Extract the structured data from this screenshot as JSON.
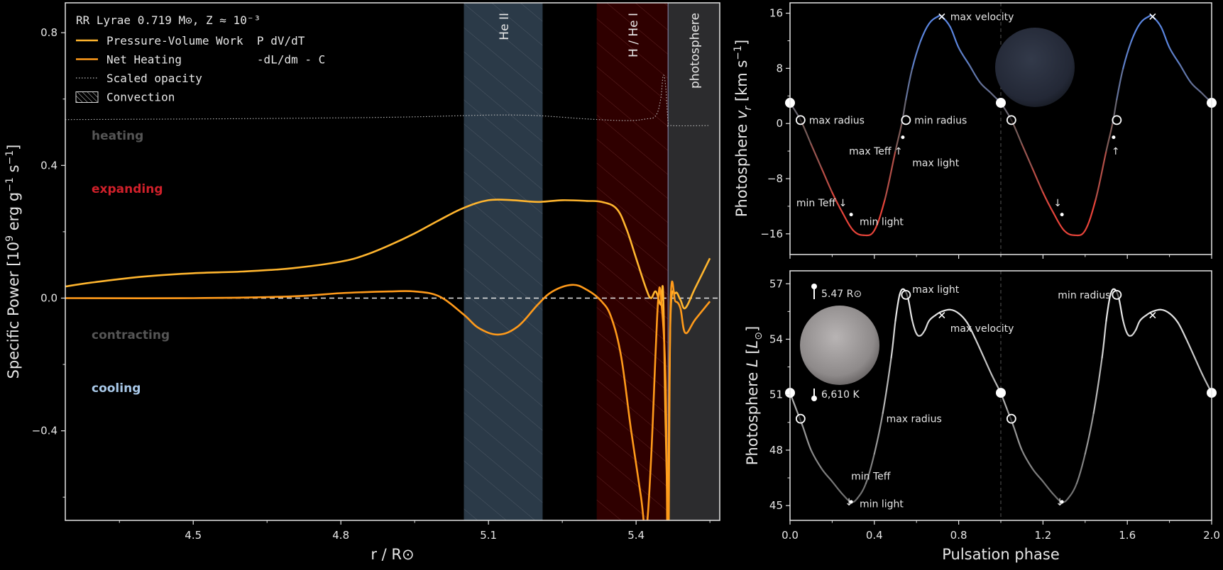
{
  "chart_data": [
    {
      "type": "line",
      "panel": "left",
      "xlabel": "r / R⊙",
      "ylabel": "Specific Power [10⁹ erg g⁻¹ s⁻¹]",
      "xlim": [
        4.24,
        5.57
      ],
      "ylim": [
        -0.67,
        0.89
      ],
      "xticks": [
        4.5,
        4.8,
        5.1,
        5.4
      ],
      "xtick_labels": [
        "4.5",
        "4.8",
        "5.1",
        "5.4"
      ],
      "yticks": [
        0.8,
        0.4,
        0.0,
        -0.4
      ],
      "ytick_labels": [
        "0.8",
        "0.4",
        "0.0",
        "−0.4"
      ],
      "legend": {
        "title": "RR Lyrae  0.719 M⊙, Z ≈ 10⁻³",
        "placement": "top-left",
        "entries": [
          {
            "label": "Pressure-Volume Work  P dV/dT",
            "color": "#ffb52e",
            "style": "solid"
          },
          {
            "label": "Net Heating           -dL/dm - C",
            "color": "#ff9a1a",
            "style": "solid"
          },
          {
            "label": "Scaled opacity",
            "color": "#bbbbbb",
            "style": "dotted"
          },
          {
            "label": "Convection",
            "color": "#cccccc",
            "style": "hatch"
          }
        ]
      },
      "annotations": [
        {
          "text": "heating",
          "color": "#555555",
          "y": 0.49
        },
        {
          "text": "expanding",
          "color": "#d0202a",
          "y": 0.33
        },
        {
          "text": "contracting",
          "color": "#555555",
          "y": -0.11
        },
        {
          "text": "cooling",
          "color": "#a8c8e8",
          "y": -0.27
        }
      ],
      "regions": [
        {
          "label": "He II",
          "x0": 5.05,
          "x1": 5.21,
          "color": "#2b3a48",
          "hatched": true
        },
        {
          "label": "H / He I",
          "x0": 5.32,
          "x1": 5.465,
          "color": "#2f0000",
          "hatched": true
        },
        {
          "label": "photosphere",
          "x0": 5.465,
          "x1": 5.57,
          "color": "#2c2c2e",
          "hatched": false
        }
      ],
      "zero_line": 0.0,
      "series": [
        {
          "name": "Pressure-Volume Work  P dV/dT",
          "color": "#ffb52e",
          "x": [
            4.24,
            4.3,
            4.4,
            4.5,
            4.6,
            4.7,
            4.8,
            4.85,
            4.9,
            4.95,
            5.0,
            5.05,
            5.1,
            5.15,
            5.2,
            5.25,
            5.3,
            5.33,
            5.36,
            5.38,
            5.4,
            5.42,
            5.43,
            5.44,
            5.45,
            5.455,
            5.46,
            5.465,
            5.47,
            5.48,
            5.49,
            5.5,
            5.52,
            5.55
          ],
          "y": [
            0.035,
            0.048,
            0.065,
            0.075,
            0.08,
            0.09,
            0.11,
            0.13,
            0.16,
            0.195,
            0.235,
            0.272,
            0.295,
            0.295,
            0.29,
            0.295,
            0.293,
            0.29,
            0.27,
            0.21,
            0.12,
            0.03,
            0.0,
            0.02,
            -0.02,
            0.015,
            -0.38,
            -0.6,
            -0.05,
            0.015,
            -0.005,
            -0.03,
            0.03,
            0.12
          ]
        },
        {
          "name": "Net Heating           -dL/dm - C",
          "color": "#ff9a1a",
          "x": [
            4.24,
            4.5,
            4.7,
            4.8,
            4.9,
            4.95,
            5.0,
            5.05,
            5.08,
            5.12,
            5.16,
            5.2,
            5.23,
            5.27,
            5.3,
            5.33,
            5.35,
            5.37,
            5.39,
            5.41,
            5.42,
            5.43,
            5.44,
            5.445,
            5.45,
            5.46,
            5.465,
            5.47,
            5.48,
            5.49,
            5.5,
            5.52,
            5.55
          ],
          "y": [
            0.0,
            0.0,
            0.005,
            0.015,
            0.02,
            0.02,
            0.005,
            -0.05,
            -0.09,
            -0.11,
            -0.085,
            -0.02,
            0.02,
            0.04,
            0.025,
            -0.01,
            -0.06,
            -0.18,
            -0.4,
            -0.6,
            -0.7,
            -0.5,
            -0.15,
            -0.005,
            0.01,
            -0.25,
            -0.85,
            -0.02,
            -0.01,
            -0.03,
            -0.105,
            -0.065,
            -0.01
          ]
        },
        {
          "name": "Scaled opacity",
          "color": "#bbbbbb",
          "x": [
            4.24,
            4.5,
            4.7,
            4.9,
            5.05,
            5.12,
            5.2,
            5.3,
            5.38,
            5.42,
            5.44,
            5.45,
            5.455,
            5.46,
            5.465,
            5.47,
            5.55
          ],
          "y": [
            0.538,
            0.54,
            0.542,
            0.545,
            0.55,
            0.552,
            0.55,
            0.54,
            0.535,
            0.54,
            0.55,
            0.6,
            0.67,
            0.64,
            0.53,
            0.52,
            0.52
          ]
        }
      ]
    },
    {
      "type": "line",
      "panel": "top-right",
      "xlabel": "",
      "ylabel": "Photosphere vᵣ [km s⁻¹]",
      "ylabel_parts": {
        "pre": "Photosphere ",
        "sym": "v",
        "sub": "r",
        "unit_pre": " [km s",
        "sup": "−1",
        "unit_post": "]"
      },
      "xlim": [
        0,
        2
      ],
      "ylim": [
        -19,
        17.5
      ],
      "yticks": [
        16,
        8,
        0,
        -8,
        -16
      ],
      "ytick_labels": [
        "16",
        "8",
        "0",
        "−8",
        "−16"
      ],
      "colormap": {
        "low": "#e8443a",
        "mid": "#6b5f5c",
        "high": "#5b86e0"
      },
      "series": [
        {
          "name": "",
          "x": [
            0,
            0.05,
            0.1,
            0.15,
            0.2,
            0.25,
            0.3,
            0.35,
            0.4,
            0.45,
            0.5,
            0.53,
            0.55,
            0.58,
            0.62,
            0.66,
            0.7,
            0.72,
            0.76,
            0.8,
            0.85,
            0.9,
            0.95,
            1.0
          ],
          "y": [
            3,
            0.5,
            -3,
            -6.5,
            -10,
            -13,
            -15.5,
            -16.2,
            -15.5,
            -11,
            -4,
            0,
            3.5,
            8,
            12,
            14.5,
            15.5,
            15.5,
            14,
            11,
            8.5,
            6,
            4.5,
            3
          ]
        }
      ],
      "markers": [
        {
          "x": 0.0,
          "y": 3,
          "kind": "filled-big"
        },
        {
          "x": 1.0,
          "y": 3,
          "kind": "filled-big"
        },
        {
          "x": 2.0,
          "y": 3,
          "kind": "filled-big"
        },
        {
          "x": 0.05,
          "y": 0.5,
          "kind": "open"
        },
        {
          "x": 1.05,
          "y": 0.5,
          "kind": "open"
        },
        {
          "x": 0.55,
          "y": 0.5,
          "kind": "open"
        },
        {
          "x": 1.55,
          "y": 0.5,
          "kind": "open"
        },
        {
          "x": 0.72,
          "y": 15.5,
          "kind": "cross"
        },
        {
          "x": 1.72,
          "y": 15.5,
          "kind": "cross"
        },
        {
          "x": 0.29,
          "y": -13.2,
          "kind": "dot"
        },
        {
          "x": 1.29,
          "y": -13.2,
          "kind": "dot"
        },
        {
          "x": 0.535,
          "y": -2,
          "kind": "dot"
        },
        {
          "x": 1.535,
          "y": -2,
          "kind": "dot"
        }
      ],
      "annotations": [
        {
          "text": "max radius",
          "x": 0.09,
          "y": 0.5
        },
        {
          "text": "min radius",
          "x": 0.59,
          "y": 0.5
        },
        {
          "text": "max velocity",
          "x": 0.76,
          "y": 15.5
        },
        {
          "text": "max Teff ↑",
          "x": 0.28,
          "y": -4
        },
        {
          "text": "max light",
          "x": 0.58,
          "y": -5.7
        },
        {
          "text": "min Teff ↓",
          "x": 0.03,
          "y": -11.5
        },
        {
          "text": "min light",
          "x": 0.33,
          "y": -14.2
        },
        {
          "text": "↑",
          "x": 1.525,
          "y": -4
        },
        {
          "text": "↓",
          "x": 1.25,
          "y": -11.5
        }
      ]
    },
    {
      "type": "line",
      "panel": "bottom-right",
      "xlabel": "Pulsation phase",
      "ylabel": "Photosphere L [L⊙]",
      "ylabel_parts": {
        "pre": "Photosphere ",
        "sym": "L",
        "unit_pre": " [",
        "unit_sym": "L",
        "unit_sub": "⊙",
        "unit_post": "]"
      },
      "xlim": [
        0,
        2
      ],
      "ylim": [
        44.2,
        57.7
      ],
      "xticks": [
        0,
        0.4,
        0.8,
        1.2,
        1.6,
        2.0
      ],
      "xtick_labels": [
        "0.0",
        "0.4",
        "0.8",
        "1.2",
        "1.6",
        "2.0"
      ],
      "yticks": [
        57,
        54,
        51,
        48,
        45
      ],
      "ytick_labels": [
        "57",
        "54",
        "51",
        "48",
        "45"
      ],
      "series": [
        {
          "name": "",
          "x": [
            0,
            0.03,
            0.06,
            0.1,
            0.15,
            0.2,
            0.25,
            0.29,
            0.32,
            0.36,
            0.4,
            0.44,
            0.48,
            0.5,
            0.52,
            0.54,
            0.56,
            0.58,
            0.6,
            0.62,
            0.64,
            0.66,
            0.69,
            0.72,
            0.76,
            0.8,
            0.84,
            0.88,
            0.92,
            0.96,
            1.0
          ],
          "y": [
            51.1,
            50.2,
            49.3,
            48.0,
            47.0,
            46.3,
            45.6,
            45.2,
            45.4,
            46.2,
            47.8,
            50.0,
            53.0,
            55.0,
            56.4,
            56.7,
            56.2,
            55.0,
            54.3,
            54.2,
            54.5,
            55.0,
            55.3,
            55.5,
            55.6,
            55.4,
            54.9,
            54.0,
            53.0,
            52.0,
            51.1
          ]
        }
      ],
      "markers": [
        {
          "x": 0.0,
          "y": 51.1,
          "kind": "filled-big"
        },
        {
          "x": 1.0,
          "y": 51.1,
          "kind": "filled-big"
        },
        {
          "x": 2.0,
          "y": 51.1,
          "kind": "filled-big"
        },
        {
          "x": 0.05,
          "y": 49.7,
          "kind": "open"
        },
        {
          "x": 1.05,
          "y": 49.7,
          "kind": "open"
        },
        {
          "x": 0.55,
          "y": 56.4,
          "kind": "open"
        },
        {
          "x": 1.55,
          "y": 56.4,
          "kind": "open"
        },
        {
          "x": 0.72,
          "y": 55.3,
          "kind": "cross"
        },
        {
          "x": 1.72,
          "y": 55.3,
          "kind": "cross"
        },
        {
          "x": 0.29,
          "y": 45.2,
          "kind": "dot"
        },
        {
          "x": 1.29,
          "y": 45.2,
          "kind": "dot"
        }
      ],
      "annotations": [
        {
          "text": "max light",
          "x": 0.58,
          "y": 56.7
        },
        {
          "text": "max velocity",
          "x": 0.76,
          "y": 54.6
        },
        {
          "text": "max radius",
          "x": 0.72,
          "y": 49.7,
          "anchor": "end"
        },
        {
          "text": "min radius",
          "x": 1.52,
          "y": 56.4,
          "anchor": "end"
        },
        {
          "text": "min Teff",
          "x": 0.29,
          "y": 46.6
        },
        {
          "text": "min light",
          "x": 0.33,
          "y": 45.1
        },
        {
          "text": "↓",
          "x": 0.26,
          "y": 45.2
        },
        {
          "text": "↓",
          "x": 1.26,
          "y": 45.2
        }
      ],
      "star_info": {
        "radius": "5.47 R⊙",
        "teff": "6,610 K"
      }
    }
  ]
}
